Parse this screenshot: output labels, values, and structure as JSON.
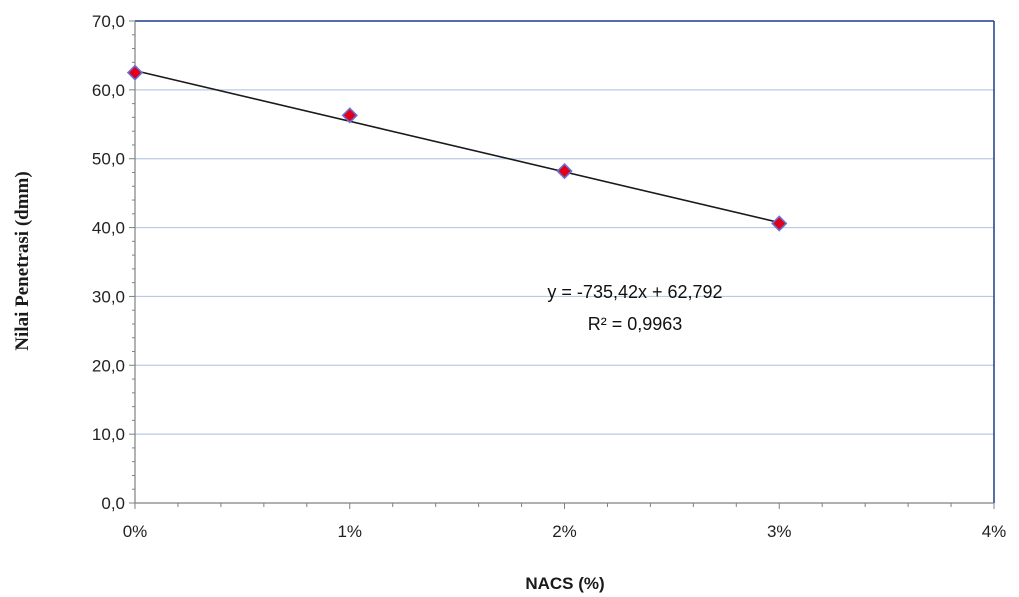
{
  "chart_data": {
    "type": "scatter",
    "xlabel": "NACS (%)",
    "ylabel": "Nilai Penetrasi (dmm)",
    "xlim": [
      0,
      0.04
    ],
    "ylim": [
      0,
      70
    ],
    "x_ticks": [
      0,
      0.01,
      0.02,
      0.03,
      0.04
    ],
    "x_tick_labels": [
      "0%",
      "1%",
      "2%",
      "3%",
      "4%"
    ],
    "y_ticks": [
      0,
      10,
      20,
      30,
      40,
      50,
      60,
      70
    ],
    "y_tick_labels": [
      "0,0",
      "10,0",
      "20,0",
      "30,0",
      "40,0",
      "50,0",
      "60,0",
      "70,0"
    ],
    "grid": "horizontal",
    "legend": "none",
    "series": [
      {
        "x": [
          0,
          0.01,
          0.02,
          0.03
        ],
        "y": [
          62.5,
          56.3,
          48.2,
          40.6
        ]
      }
    ],
    "trendline": {
      "type": "linear",
      "slope": -735.42,
      "intercept": 62.792,
      "x_range": [
        0,
        0.03
      ],
      "equation_label": "y = -735,42x + 62,792",
      "r2_label": "R² = 0,9963"
    },
    "colors": {
      "marker_fill": "#e0001a",
      "marker_stroke": "#6a6fd0",
      "trendline": "#1a1a1a",
      "gridline": "#b8cbe6",
      "frame": "#1f3f8a",
      "axis": "#808080"
    }
  }
}
